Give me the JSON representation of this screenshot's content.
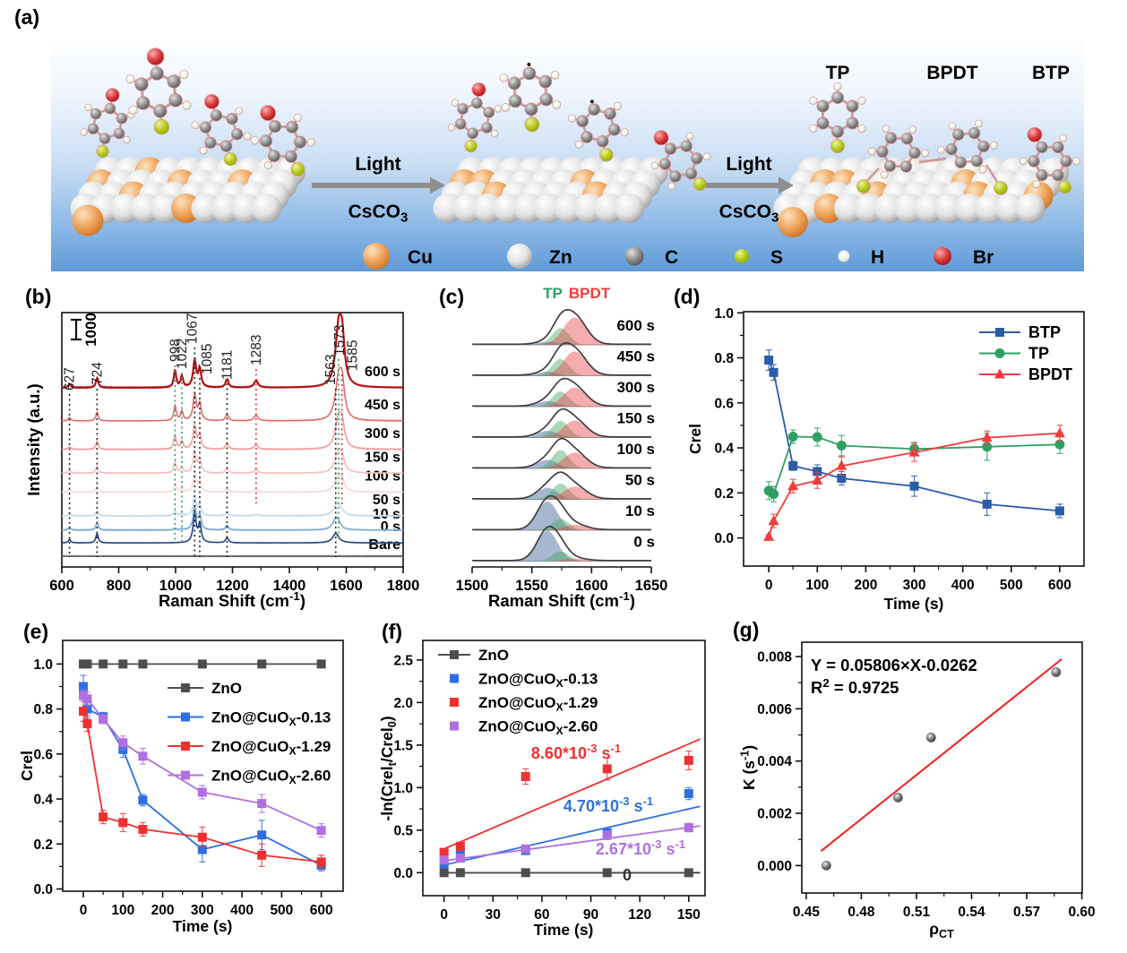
{
  "panels": {
    "a": "(a)",
    "b": "(b)",
    "c": "(c)",
    "d": "(d)",
    "e": "(e)",
    "f": "(f)",
    "g": "(g)"
  },
  "panel_a": {
    "product_labels": [
      "TP",
      "BPDT",
      "BTP"
    ],
    "step_labels": [
      {
        "top": "Light",
        "bottom": "CsCO_{3}"
      },
      {
        "top": "Light",
        "bottom": "CsCO_{3}"
      }
    ],
    "atom_legend": [
      {
        "label": "Cu",
        "type": "cu"
      },
      {
        "label": "Zn",
        "type": "zn"
      },
      {
        "label": "C",
        "type": "c"
      },
      {
        "label": "S",
        "type": "s"
      },
      {
        "label": "H",
        "type": "h"
      },
      {
        "label": "Br",
        "type": "br"
      }
    ],
    "colors": {
      "cu": "#d97b2f",
      "zn": "#d8d8d8",
      "c": "#7a7a7a",
      "s": "#a9bf12",
      "h": "#e9f2e2",
      "br": "#bf1417",
      "bg_top": "#fdfeff",
      "bg_bottom": "#5f9bd9"
    }
  },
  "chart_data": [
    {
      "id": "b",
      "type": "line",
      "xlabel": "Raman Shift (cm^{-1})",
      "ylabel": "Intensity (a.u.)",
      "xlim": [
        600,
        1800
      ],
      "xticks": [
        600,
        800,
        1000,
        1200,
        1400,
        1600,
        1800
      ],
      "xtick_labels": [
        "600",
        "800",
        "1000",
        "1200",
        "1400",
        "1600",
        "1800"
      ],
      "scalebar_label": "1000",
      "peaks": [
        627,
        724,
        998,
        1022,
        1067,
        1085,
        1181,
        1283,
        1563,
        1573,
        1585
      ],
      "peak_labels": [
        "627",
        "724",
        "998",
        "1022",
        "1067",
        "1085",
        "1181",
        "1283",
        "1563",
        "1573",
        "1585"
      ],
      "peak_widths": [
        5,
        5,
        5,
        5,
        6.5,
        6,
        6,
        8,
        13,
        10,
        11
      ],
      "guide_colors": [
        "#222222",
        "#222222",
        "#2e9e5b",
        "#2e9e5b",
        "#222222",
        "#222222",
        "#222222",
        "#e23333",
        "#222222",
        "#2e9e5b",
        "#e23333"
      ],
      "traces": [
        {
          "label": "Bare",
          "color": "#595959",
          "offset": 0,
          "amps": [
            0,
            0,
            0,
            0,
            0,
            0,
            0,
            0,
            0,
            0,
            0
          ]
        },
        {
          "label": "0 s",
          "color": "#1c4587",
          "offset": 0.28,
          "amps": [
            0.07,
            0.2,
            0,
            0,
            0.6,
            0.38,
            0.11,
            0,
            0.2,
            0,
            0
          ]
        },
        {
          "label": "10 s",
          "color": "#7fa8d5",
          "offset": 0.55,
          "amps": [
            0.06,
            0.16,
            0.03,
            0.02,
            0.48,
            0.3,
            0.1,
            0,
            0.22,
            0.08,
            0
          ]
        },
        {
          "label": "50 s",
          "color": "#c3d9ef",
          "offset": 0.85,
          "amps": [
            0.05,
            0.11,
            0.09,
            0.05,
            0.36,
            0.22,
            0.08,
            0.03,
            0.16,
            0.12,
            0.07
          ]
        },
        {
          "label": "100 s",
          "color": "#fad6d8",
          "offset": 1.35,
          "amps": [
            0.05,
            0.12,
            0.16,
            0.09,
            0.36,
            0.23,
            0.08,
            0.05,
            0.12,
            0.22,
            0.2
          ]
        },
        {
          "label": "150 s",
          "color": "#f5bfc1",
          "offset": 1.75,
          "amps": [
            0.06,
            0.15,
            0.23,
            0.13,
            0.46,
            0.28,
            0.1,
            0.07,
            0.12,
            0.3,
            0.3
          ]
        },
        {
          "label": "300 s",
          "color": "#efa0a2",
          "offset": 2.25,
          "amps": [
            0.06,
            0.17,
            0.29,
            0.18,
            0.5,
            0.3,
            0.12,
            0.1,
            0.14,
            0.45,
            0.52
          ]
        },
        {
          "label": "450 s",
          "color": "#e26b6b",
          "offset": 2.85,
          "amps": [
            0.07,
            0.18,
            0.31,
            0.2,
            0.55,
            0.35,
            0.14,
            0.12,
            0.16,
            0.62,
            0.78
          ]
        },
        {
          "label": "600 s",
          "color": "#b11116",
          "offset": 3.55,
          "amps": [
            0.08,
            0.21,
            0.36,
            0.23,
            0.55,
            0.38,
            0.18,
            0.15,
            0.22,
            0.88,
            1.05
          ]
        }
      ]
    },
    {
      "id": "c",
      "type": "area",
      "xlabel": "Raman Shift (cm^{-1})",
      "xlim": [
        1500,
        1650
      ],
      "xticks": [
        1500,
        1550,
        1600,
        1650
      ],
      "xtick_labels": [
        "1500",
        "1550",
        "1600",
        "1650"
      ],
      "header": [
        {
          "text": "TP",
          "color": "#2ea162"
        },
        {
          "text": "BPDT",
          "color": "#f23c3c"
        }
      ],
      "components": {
        "centers": [
          1563,
          1574,
          1586
        ],
        "sigmas": [
          8.5,
          7,
          9.5
        ],
        "colors": [
          "#3d5f96",
          "#44a864",
          "#e8484d"
        ]
      },
      "traces": [
        {
          "label": "600 s",
          "amps": [
            0.1,
            0.55,
            0.9
          ]
        },
        {
          "label": "450 s",
          "amps": [
            0.13,
            0.55,
            0.8
          ]
        },
        {
          "label": "300 s",
          "amps": [
            0.18,
            0.5,
            0.63
          ]
        },
        {
          "label": "150 s",
          "amps": [
            0.22,
            0.55,
            0.56
          ]
        },
        {
          "label": "100 s",
          "amps": [
            0.28,
            0.6,
            0.52
          ]
        },
        {
          "label": "50 s",
          "amps": [
            0.38,
            0.52,
            0.42
          ]
        },
        {
          "label": "10 s",
          "amps": [
            0.95,
            0.38,
            0.18
          ]
        },
        {
          "label": "0 s",
          "amps": [
            1.0,
            0.32,
            0.08
          ]
        }
      ]
    },
    {
      "id": "d",
      "type": "scatter-line",
      "xlabel": "Time (s)",
      "ylabel": "Crel",
      "xlim": [
        -52,
        650
      ],
      "ylim": [
        -0.125,
        1.005
      ],
      "xticks": [
        0,
        100,
        200,
        300,
        400,
        500,
        600
      ],
      "xtick_labels": [
        "0",
        "100",
        "200",
        "300",
        "400",
        "500",
        "600"
      ],
      "yticks": [
        0.0,
        0.2,
        0.4,
        0.6,
        0.8,
        1.0
      ],
      "ytick_labels": [
        "0.0",
        "0.2",
        "0.4",
        "0.6",
        "0.8",
        "1.0"
      ],
      "x": [
        0,
        10,
        50,
        100,
        150,
        300,
        450,
        600
      ],
      "series": [
        {
          "name": "BTP",
          "color": "#2b5ca8",
          "marker": "sq",
          "line": true,
          "y": [
            0.79,
            0.735,
            0.32,
            0.295,
            0.265,
            0.23,
            0.15,
            0.12
          ],
          "err": [
            0.045,
            0.035,
            0.02,
            0.03,
            0.03,
            0.045,
            0.05,
            0.03
          ]
        },
        {
          "name": "TP",
          "color": "#2ea162",
          "marker": "ci",
          "line": true,
          "y": [
            0.21,
            0.195,
            0.45,
            0.448,
            0.41,
            0.395,
            0.405,
            0.415
          ],
          "err": [
            0.04,
            0.035,
            0.03,
            0.04,
            0.045,
            0.03,
            0.06,
            0.04
          ]
        },
        {
          "name": "BPDT",
          "color": "#f23c3c",
          "marker": "tr",
          "line": true,
          "y": [
            0.005,
            0.075,
            0.23,
            0.255,
            0.32,
            0.38,
            0.445,
            0.465
          ],
          "err": [
            0.01,
            0.03,
            0.03,
            0.035,
            0.04,
            0.04,
            0.03,
            0.035
          ]
        }
      ]
    },
    {
      "id": "e",
      "type": "scatter-line",
      "xlabel": "Time (s)",
      "ylabel": "Crel",
      "xlim": [
        -52,
        655
      ],
      "ylim": [
        -0.01,
        1.105
      ],
      "xticks": [
        0,
        100,
        200,
        300,
        400,
        500,
        600
      ],
      "xtick_labels": [
        "0",
        "100",
        "200",
        "300",
        "400",
        "500",
        "600"
      ],
      "yticks": [
        0.0,
        0.2,
        0.4,
        0.6,
        0.8,
        1.0
      ],
      "ytick_labels": [
        "0.0",
        "0.2",
        "0.4",
        "0.6",
        "0.8",
        "1.0"
      ],
      "x": [
        0,
        10,
        50,
        100,
        150,
        300,
        450,
        600
      ],
      "series": [
        {
          "name": "ZnO",
          "color": "#4d4d4d",
          "marker": "sq",
          "line": true,
          "y": [
            1.0,
            1.0,
            1.0,
            1.0,
            1.0,
            1.0,
            1.0,
            1.0
          ],
          "err": [
            0,
            0,
            0,
            0,
            0,
            0,
            0,
            0
          ]
        },
        {
          "name": "ZnO@CuO_{X}-0.13",
          "color": "#2e6fe0",
          "marker": "sq",
          "line": true,
          "y": [
            0.9,
            0.8,
            0.765,
            0.62,
            0.395,
            0.175,
            0.24,
            0.105
          ],
          "err": [
            0.05,
            0.04,
            0.02,
            0.035,
            0.025,
            0.055,
            0.065,
            0.025
          ]
        },
        {
          "name": "ZnO@CuO_{X}-1.29",
          "color": "#f03030",
          "marker": "sq",
          "line": true,
          "y": [
            0.79,
            0.735,
            0.32,
            0.295,
            0.265,
            0.23,
            0.15,
            0.12
          ],
          "err": [
            0.045,
            0.035,
            0.03,
            0.04,
            0.03,
            0.045,
            0.05,
            0.03
          ]
        },
        {
          "name": "ZnO@CuO_{X}-2.60",
          "color": "#b070e0",
          "marker": "sq",
          "line": true,
          "y": [
            0.86,
            0.845,
            0.755,
            0.65,
            0.59,
            0.43,
            0.38,
            0.26
          ],
          "err": [
            0.025,
            0.03,
            0.02,
            0.03,
            0.035,
            0.03,
            0.04,
            0.03
          ]
        }
      ]
    },
    {
      "id": "f",
      "type": "scatter-fit",
      "xlabel": "Time (s)",
      "ylabel": "-ln(Crel_{t}/Crel_{0})",
      "xlim": [
        -13,
        160
      ],
      "ylim": [
        -0.27,
        2.73
      ],
      "xticks": [
        0,
        30,
        60,
        90,
        120,
        150
      ],
      "xtick_labels": [
        "0",
        "30",
        "60",
        "90",
        "120",
        "150"
      ],
      "yticks": [
        0.0,
        0.5,
        1.0,
        1.5,
        2.0,
        2.5
      ],
      "ytick_labels": [
        "0.0",
        "0.5",
        "1.0",
        "1.5",
        "2.0",
        "2.5"
      ],
      "x": [
        0,
        10,
        50,
        100,
        150
      ],
      "series": [
        {
          "name": "ZnO",
          "color": "#4d4d4d",
          "marker": "sq",
          "line": true,
          "y": [
            0,
            0,
            0,
            0,
            0
          ],
          "err": [
            0,
            0,
            0,
            0,
            0
          ]
        },
        {
          "name": "ZnO@CuO_{X}-0.13",
          "color": "#2e6fe0",
          "marker": "sq",
          "line": false,
          "y": [
            0.1,
            0.23,
            0.26,
            0.47,
            0.93
          ],
          "err": [
            0.03,
            0.03,
            0.03,
            0.04,
            0.07
          ]
        },
        {
          "name": "ZnO@CuO_{X}-1.29",
          "color": "#f03030",
          "marker": "sq",
          "line": false,
          "y": [
            0.24,
            0.31,
            1.13,
            1.22,
            1.32
          ],
          "err": [
            0.03,
            0.04,
            0.09,
            0.13,
            0.11
          ]
        },
        {
          "name": "ZnO@CuO_{X}-2.60",
          "color": "#b070e0",
          "marker": "sq",
          "line": false,
          "y": [
            0.15,
            0.17,
            0.28,
            0.44,
            0.53
          ],
          "err": [
            0.03,
            0.03,
            0.04,
            0.05,
            0.05
          ]
        }
      ],
      "fits": [
        {
          "color": "#f03030",
          "x": [
            0,
            157
          ],
          "y": [
            0.28,
            1.57
          ]
        },
        {
          "color": "#2e6fe0",
          "x": [
            0,
            157
          ],
          "y": [
            0.09,
            0.78
          ]
        },
        {
          "color": "#b070e0",
          "x": [
            0,
            157
          ],
          "y": [
            0.14,
            0.55
          ]
        },
        {
          "color": "#333333",
          "x": [
            0,
            157
          ],
          "y": [
            0,
            0
          ]
        }
      ],
      "annotations": [
        {
          "text": "8.60*10^{-3} s^{-1}",
          "color": "#f03030"
        },
        {
          "text": "4.70*10^{-3} s^{-1}",
          "color": "#2e6fe0"
        },
        {
          "text": "2.67*10^{-3} s^{-1}",
          "color": "#b070e0"
        },
        {
          "text": "0",
          "color": "#333333"
        }
      ]
    },
    {
      "id": "g",
      "type": "scatter-fit",
      "xlabel": "ρ_{CT}",
      "ylabel": "K (s^{-1})",
      "xlim": [
        0.4476,
        0.6002
      ],
      "ylim": [
        -0.00105,
        0.00855
      ],
      "xticks": [
        0.45,
        0.48,
        0.51,
        0.54,
        0.57,
        0.6
      ],
      "xtick_labels": [
        "0.45",
        "0.48",
        "0.51",
        "0.54",
        "0.57",
        "0.60"
      ],
      "yticks": [
        0.0,
        0.002,
        0.004,
        0.006,
        0.008
      ],
      "ytick_labels": [
        "0.000",
        "0.002",
        "0.004",
        "0.006",
        "0.008"
      ],
      "points": {
        "x": [
          0.461,
          0.5,
          0.518,
          0.586
        ],
        "y": [
          0.0,
          0.0026,
          0.0049,
          0.0074
        ]
      },
      "fit": {
        "color": "#f52020",
        "x": [
          0.458,
          0.589
        ],
        "y": [
          0.00055,
          0.0079
        ]
      },
      "annotations": [
        "Y = 0.05806×X-0.0262",
        "R^{2} = 0.9725"
      ]
    }
  ]
}
